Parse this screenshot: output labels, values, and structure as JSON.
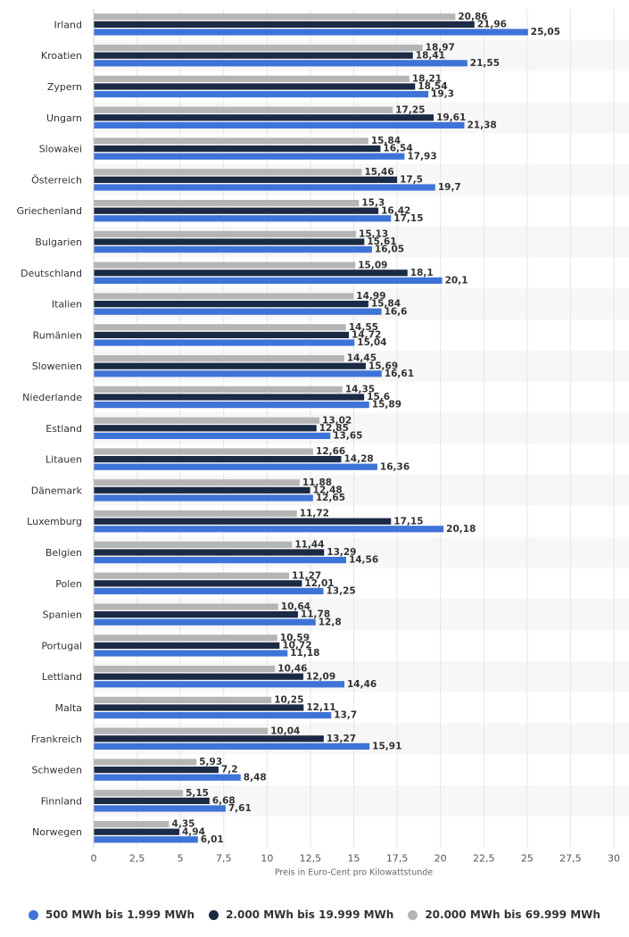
{
  "chart_data": {
    "type": "bar",
    "orientation": "horizontal",
    "categories": [
      "Irland",
      "Kroatien",
      "Zypern",
      "Ungarn",
      "Slowakei",
      "Österreich",
      "Griechenland",
      "Bulgarien",
      "Deutschland",
      "Italien",
      "Rumänien",
      "Slowenien",
      "Niederlande",
      "Estland",
      "Litauen",
      "Dänemark",
      "Luxemburg",
      "Belgien",
      "Polen",
      "Spanien",
      "Portugal",
      "Lettland",
      "Malta",
      "Frankreich",
      "Schweden",
      "Finnland",
      "Norwegen"
    ],
    "series": [
      {
        "name": "20.000 MWh bis 69.999 MWh",
        "color": "#b5b5b5",
        "values": [
          20.86,
          18.97,
          18.21,
          17.25,
          15.84,
          15.46,
          15.3,
          15.13,
          15.09,
          14.99,
          14.55,
          14.45,
          14.35,
          13.02,
          12.66,
          11.88,
          11.72,
          11.44,
          11.27,
          10.64,
          10.59,
          10.46,
          10.25,
          10.04,
          5.93,
          5.15,
          4.35
        ],
        "labels": [
          "20,86",
          "18,97",
          "18,21",
          "17,25",
          "15,84",
          "15,46",
          "15,3",
          "15,13",
          "15,09",
          "14,99",
          "14,55",
          "14,45",
          "14,35",
          "13,02",
          "12,66",
          "11,88",
          "11,72",
          "11,44",
          "11,27",
          "10,64",
          "10,59",
          "10,46",
          "10,25",
          "10,04",
          "5,93",
          "5,15",
          "4,35"
        ]
      },
      {
        "name": "2.000 MWh bis 19.999 MWh",
        "color": "#1b2a45",
        "values": [
          21.96,
          18.41,
          18.54,
          19.61,
          16.54,
          17.5,
          16.42,
          15.61,
          18.1,
          15.84,
          14.72,
          15.69,
          15.6,
          12.85,
          14.28,
          12.48,
          17.15,
          13.29,
          12.01,
          11.78,
          10.72,
          12.09,
          12.11,
          13.27,
          7.2,
          6.68,
          4.94
        ],
        "labels": [
          "21,96",
          "18,41",
          "18,54",
          "19,61",
          "16,54",
          "17,5",
          "16,42",
          "15,61",
          "18,1",
          "15,84",
          "14,72",
          "15,69",
          "15,6",
          "12,85",
          "14,28",
          "12,48",
          "17,15",
          "13,29",
          "12,01",
          "11,78",
          "10,72",
          "12,09",
          "12,11",
          "13,27",
          "7,2",
          "6,68",
          "4,94"
        ]
      },
      {
        "name": "500 MWh bis 1.999 MWh",
        "color": "#3e73d8",
        "values": [
          25.05,
          21.55,
          19.3,
          21.38,
          17.93,
          19.7,
          17.15,
          16.05,
          20.1,
          16.6,
          15.04,
          16.61,
          15.89,
          13.65,
          16.36,
          12.65,
          20.18,
          14.56,
          13.25,
          12.8,
          11.18,
          14.46,
          13.7,
          15.91,
          8.48,
          7.61,
          6.01
        ],
        "labels": [
          "25,05",
          "21,55",
          "19,3",
          "21,38",
          "17,93",
          "19,7",
          "17,15",
          "16,05",
          "20,1",
          "16,6",
          "15,04",
          "16,61",
          "15,89",
          "13,65",
          "16,36",
          "12,65",
          "20,18",
          "14,56",
          "13,25",
          "12,8",
          "11,18",
          "14,46",
          "13,7",
          "15,91",
          "8,48",
          "7,61",
          "6,01"
        ]
      }
    ],
    "xlim": [
      0,
      30
    ],
    "xticks": [
      0,
      2.5,
      5,
      7.5,
      10,
      12.5,
      15,
      17.5,
      20,
      22.5,
      25,
      27.5,
      30
    ],
    "xtick_labels": [
      "0",
      "2,5",
      "5",
      "7,5",
      "10",
      "12,5",
      "15",
      "17,5",
      "20",
      "22,5",
      "25",
      "27,5",
      "30"
    ],
    "xlabel": "Preis in Euro-Cent pro Kilowattstunde",
    "grid": true,
    "legend_position": "bottom"
  },
  "legend": [
    {
      "label": "500 MWh bis 1.999 MWh",
      "color": "#3e73d8"
    },
    {
      "label": "2.000 MWh bis 19.999 MWh",
      "color": "#1b2a45"
    },
    {
      "label": "20.000 MWh bis 69.999 MWh",
      "color": "#b5b5b5"
    }
  ]
}
